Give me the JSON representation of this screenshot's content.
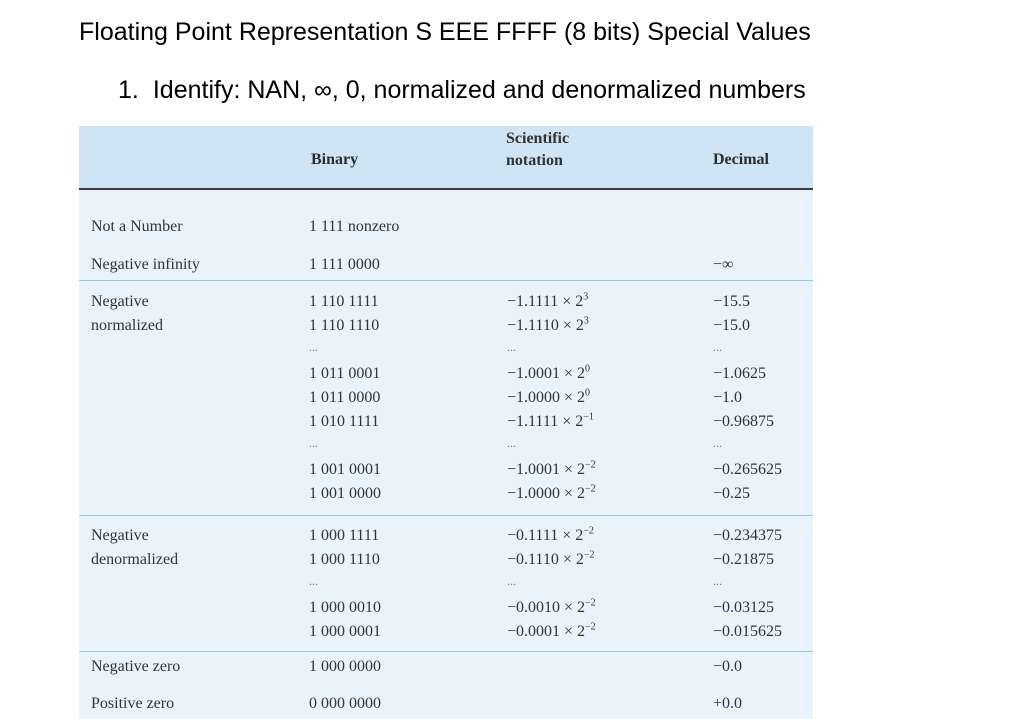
{
  "title": "Floating Point Representation S EEE FFFF (8 bits) Special Values",
  "item": {
    "number": "1.",
    "text": "Identify:  NAN,  ∞, 0, normalized and denormalized numbers"
  },
  "table": {
    "headers": {
      "binary": "Binary",
      "sci_line1": "Scientific",
      "sci_line2": "notation",
      "decimal": "Decimal"
    },
    "ellipsis": "...",
    "rows": {
      "nan": {
        "label": "Not a Number",
        "binary": "1 111 nonzero"
      },
      "neg_inf": {
        "label": "Negative infinity",
        "binary": "1 111 0000",
        "decimal": "−∞"
      },
      "neg_norm": {
        "label1": "Negative",
        "label2": "normalized",
        "b": [
          "1 110 1111",
          "1 110 1110",
          "1 011 0001",
          "1 011 0000",
          "1 010 1111",
          "1 001 0001",
          "1 001 0000"
        ],
        "s": [
          "−1.1111 × 2",
          "−1.1110 × 2",
          "−1.0001 × 2",
          "−1.0000 × 2",
          "−1.1111 × 2",
          "−1.0001 × 2",
          "−1.0000 × 2"
        ],
        "e": [
          "3",
          "3",
          "0",
          "0",
          "−1",
          "−2",
          "−2"
        ],
        "d": [
          "−15.5",
          "−15.0",
          "−1.0625",
          "−1.0",
          "−0.96875",
          "−0.265625",
          "−0.25"
        ]
      },
      "neg_denorm": {
        "label1": "Negative",
        "label2": "denormalized",
        "b": [
          "1 000 1111",
          "1 000 1110",
          "1 000 0010",
          "1 000 0001"
        ],
        "s": [
          "−0.1111 × 2",
          "−0.1110 × 2",
          "−0.0010 × 2",
          "−0.0001 × 2"
        ],
        "e": [
          "−2",
          "−2",
          "−2",
          "−2"
        ],
        "d": [
          "−0.234375",
          "−0.21875",
          "−0.03125",
          "−0.015625"
        ]
      },
      "neg_zero": {
        "label": "Negative zero",
        "binary": "1 000 0000",
        "decimal": "−0.0"
      },
      "pos_zero": {
        "label": "Positive zero",
        "binary": "0 000 0000",
        "decimal": "+0.0"
      }
    }
  },
  "colors": {
    "header_bg": "#cfe5f5",
    "body_bg": "#e9f3fb",
    "separator": "#9cc7e4",
    "header_rule": "#3a3a3a"
  }
}
